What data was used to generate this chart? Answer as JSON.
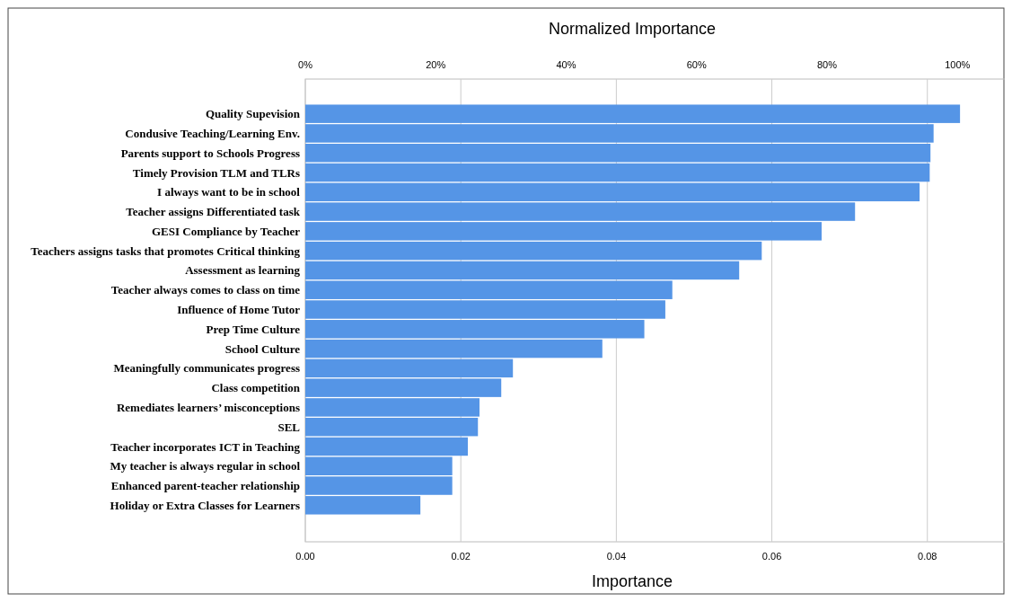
{
  "chart_data": {
    "type": "bar",
    "orientation": "horizontal",
    "xlabel": "Importance",
    "x2label": "Normalized Importance",
    "categories": [
      "Quality Supevision",
      "Condusive Teaching/Learning Env.",
      "Parents support to Schools Progress",
      "Timely Provision TLM and TLRs",
      "I always want to be in school",
      "Teacher assigns Differentiated task",
      "GESI Compliance by Teacher",
      "Teachers assigns tasks that promotes Critical thinking",
      "Assessment as learning",
      "Teacher always comes to class on time",
      "Influence of Home Tutor",
      "Prep Time Culture",
      "School Culture",
      "Meaningfully communicates progress",
      "Class competition",
      "Remediates learners’ misconceptions",
      "SEL",
      "Teacher incorporates ICT in Teaching",
      "My teacher is always regular in school",
      "Enhanced parent-teacher relationship",
      "Holiday or Extra Classes for Learners"
    ],
    "values": [
      0.0842,
      0.0808,
      0.0804,
      0.0803,
      0.079,
      0.0707,
      0.0664,
      0.0587,
      0.0558,
      0.0472,
      0.0463,
      0.0436,
      0.0382,
      0.0267,
      0.0252,
      0.0224,
      0.0222,
      0.0209,
      0.0189,
      0.0189,
      0.0148
    ],
    "color": "#5595e6",
    "xlim": [
      0,
      0.091
    ],
    "xticks": [
      {
        "value": 0,
        "label": "0.00"
      },
      0.02,
      0.04,
      0.06,
      0.08
    ],
    "x2lim": [
      0,
      108.5
    ],
    "x2ticks": [
      {
        "value": 0,
        "label": "0%"
      },
      {
        "value": 20,
        "label": "20%"
      },
      {
        "value": 40,
        "label": "40%"
      },
      {
        "value": 60,
        "label": "60%"
      },
      {
        "value": 80,
        "label": "80%"
      },
      {
        "value": 100,
        "label": "100%"
      }
    ],
    "grid": "x"
  }
}
